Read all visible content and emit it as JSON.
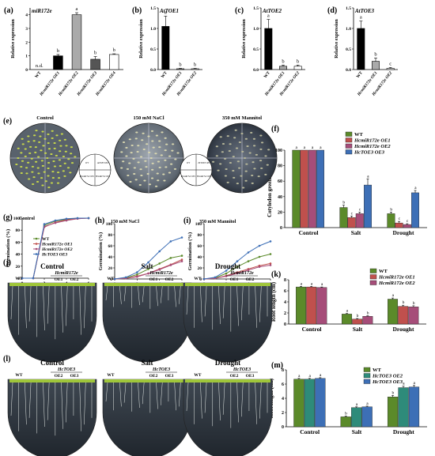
{
  "panels": {
    "a": {
      "label": "(a)",
      "gene": "miR172e",
      "ylabel": "Relative expression",
      "categories": [
        "WT",
        "HcmiR172e OE1",
        "HcmiR172e OE2",
        "HcmiR172e OE3",
        "HcmiR172e OE4"
      ],
      "values": [
        0,
        1.0,
        4.0,
        0.75,
        1.1
      ],
      "errors": [
        0,
        0.1,
        0.15,
        0.2,
        0.05
      ],
      "letters": [
        "n.d.",
        "b",
        "a",
        "b",
        "b"
      ],
      "fill": [
        "#000000",
        "#000000",
        "#aaaaaa",
        "#555555",
        "#ffffff"
      ],
      "ylim": [
        0,
        4.5
      ],
      "yticks": [
        0,
        1,
        2,
        3,
        4
      ]
    },
    "b": {
      "label": "(b)",
      "gene": "AtTOE1",
      "ylabel": "Relative expression",
      "categories": [
        "WT",
        "HcmiR172e OE1",
        "HcmiR172e OE2"
      ],
      "values": [
        1.05,
        0.02,
        0.02
      ],
      "errors": [
        0.25,
        0.01,
        0.01
      ],
      "letters": [
        "a",
        "b",
        "b"
      ],
      "fill": [
        "#000000",
        "#aaaaaa",
        "#ffffff"
      ],
      "ylim": [
        0,
        1.5
      ],
      "yticks": [
        0.0,
        0.5,
        1.0,
        1.5
      ]
    },
    "c": {
      "label": "(c)",
      "gene": "AtTOE2",
      "ylabel": "Relative expression",
      "categories": [
        "WT",
        "HcmiR172e OE1",
        "HcmiR172e OE2"
      ],
      "values": [
        1.0,
        0.08,
        0.08
      ],
      "errors": [
        0.22,
        0.03,
        0.03
      ],
      "letters": [
        "a",
        "b",
        "b"
      ],
      "fill": [
        "#000000",
        "#aaaaaa",
        "#ffffff"
      ],
      "ylim": [
        0,
        1.5
      ],
      "yticks": [
        0.0,
        0.5,
        1.0,
        1.5
      ]
    },
    "d": {
      "label": "(d)",
      "gene": "AtTOE3",
      "ylabel": "Relative expression",
      "categories": [
        "WT",
        "HcmiR172e OE1",
        "HcmiR172e OE2"
      ],
      "values": [
        1.0,
        0.2,
        0.03
      ],
      "errors": [
        0.18,
        0.08,
        0.02
      ],
      "letters": [
        "a",
        "b",
        "c"
      ],
      "fill": [
        "#000000",
        "#aaaaaa",
        "#ffffff"
      ],
      "ylim": [
        0,
        1.5
      ],
      "yticks": [
        0.0,
        0.5,
        1.0,
        1.5
      ]
    }
  },
  "plates_e": {
    "label": "(e)",
    "titles": [
      "Control",
      "150 mM NaCl",
      "350 mM Mannitol"
    ],
    "keys": [
      [
        "WT",
        "AtTOE3 OE2",
        "HcmiR172e OE1",
        "HcmiR172e OE2"
      ],
      [
        "WT",
        "HcTOE3 OE2",
        "HcmiR172e OE1",
        "HcmiR172e OE3"
      ]
    ]
  },
  "chart_data": [
    {
      "id": "f",
      "label": "(f)",
      "type": "bar",
      "ylabel": "Cotyledon greening (%)",
      "categories": [
        "Control",
        "Salt",
        "Drought"
      ],
      "series": [
        {
          "name": "WT",
          "color": "#5b8a2a",
          "values": [
            100,
            26,
            18
          ],
          "errors": [
            0,
            3,
            2
          ],
          "letters": [
            "a",
            "b",
            "b"
          ]
        },
        {
          "name": "HcmiR172e OE1",
          "color": "#c0504d",
          "values": [
            100,
            13,
            6
          ],
          "errors": [
            0,
            2,
            2
          ],
          "letters": [
            "a",
            "c",
            "c"
          ]
        },
        {
          "name": "HcmiR172e OE2",
          "color": "#a64d79",
          "values": [
            100,
            18,
            4
          ],
          "errors": [
            0,
            2,
            1
          ],
          "letters": [
            "a",
            "c",
            "c"
          ]
        },
        {
          "name": "HcTOE3 OE3",
          "color": "#3d6fb6",
          "values": [
            100,
            55,
            45
          ],
          "errors": [
            0,
            8,
            3
          ],
          "letters": [
            "a",
            "a",
            "a"
          ]
        }
      ],
      "ylim": [
        0,
        100
      ],
      "yticks": [
        0,
        20,
        40,
        60,
        80,
        100
      ],
      "legend": "top-right"
    },
    {
      "id": "g",
      "label": "(g)",
      "type": "line",
      "title": "Control",
      "ylabel": "Germination (%)",
      "xlabel": "Time (days)",
      "x": [
        0,
        1,
        2,
        3,
        4,
        5,
        6
      ],
      "series": [
        {
          "name": "WT",
          "color": "#5b8a2a",
          "values": [
            0,
            0,
            88,
            95,
            98,
            100,
            100
          ]
        },
        {
          "name": "HcmiR172e OE1",
          "color": "#c0504d",
          "values": [
            0,
            0,
            85,
            93,
            97,
            99,
            100
          ]
        },
        {
          "name": "HcmiR172e OE2",
          "color": "#a64d79",
          "values": [
            0,
            0,
            86,
            92,
            96,
            99,
            100
          ]
        },
        {
          "name": "HcTOE3 OE3",
          "color": "#3d6fb6",
          "values": [
            0,
            0,
            90,
            96,
            99,
            100,
            100
          ]
        }
      ],
      "ylim": [
        0,
        100
      ],
      "yticks": [
        0,
        20,
        40,
        60,
        80,
        100
      ],
      "xticks": [
        0,
        2,
        4,
        6
      ]
    },
    {
      "id": "h",
      "label": "(h)",
      "type": "line",
      "title": "150 mM NaCl",
      "ylabel": "Germination (%)",
      "xlabel": "Time (days)",
      "x": [
        0,
        1,
        2,
        3,
        4,
        5,
        6
      ],
      "series": [
        {
          "name": "WT",
          "color": "#5b8a2a",
          "values": [
            0,
            2,
            8,
            18,
            28,
            38,
            42
          ]
        },
        {
          "name": "HcmiR172e OE1",
          "color": "#c0504d",
          "values": [
            0,
            1,
            5,
            10,
            18,
            26,
            35
          ]
        },
        {
          "name": "HcmiR172e OE2",
          "color": "#a64d79",
          "values": [
            0,
            1,
            4,
            10,
            17,
            25,
            32
          ]
        },
        {
          "name": "HcTOE3 OE3",
          "color": "#3d6fb6",
          "values": [
            0,
            3,
            12,
            30,
            50,
            68,
            75
          ]
        }
      ],
      "ylim": [
        0,
        100
      ],
      "yticks": [
        0,
        20,
        40,
        60,
        80,
        100
      ],
      "xticks": [
        0,
        2,
        4,
        6
      ]
    },
    {
      "id": "i",
      "label": "(i)",
      "type": "line",
      "title": "350 mM Mannitol",
      "ylabel": "Germination (%)",
      "xlabel": "Time (days)",
      "x": [
        0,
        1,
        2,
        3,
        4,
        5,
        6
      ],
      "series": [
        {
          "name": "WT",
          "color": "#5b8a2a",
          "values": [
            0,
            2,
            10,
            22,
            32,
            40,
            45
          ]
        },
        {
          "name": "HcmiR172e OE1",
          "color": "#c0504d",
          "values": [
            0,
            1,
            6,
            12,
            18,
            24,
            28
          ]
        },
        {
          "name": "HcmiR172e OE2",
          "color": "#a64d79",
          "values": [
            0,
            1,
            5,
            10,
            16,
            22,
            25
          ]
        },
        {
          "name": "HcTOE3 OE3",
          "color": "#3d6fb6",
          "values": [
            0,
            3,
            15,
            32,
            48,
            60,
            68
          ]
        }
      ],
      "ylim": [
        0,
        100
      ],
      "yticks": [
        0,
        20,
        40,
        60,
        80,
        100
      ],
      "xticks": [
        0,
        2,
        4,
        6
      ]
    },
    {
      "id": "k",
      "label": "(k)",
      "type": "bar",
      "ylabel": "Root length (cm)",
      "categories": [
        "Control",
        "Salt",
        "Drought"
      ],
      "series": [
        {
          "name": "WT",
          "color": "#5b8a2a",
          "values": [
            6.7,
            1.8,
            4.5
          ],
          "errors": [
            0.1,
            0.1,
            0.2
          ],
          "letters": [
            "a",
            "a",
            "a"
          ]
        },
        {
          "name": "HcmiR172e OE1",
          "color": "#c0504d",
          "values": [
            6.7,
            0.9,
            3.2
          ],
          "errors": [
            0.1,
            0.1,
            0.2
          ],
          "letters": [
            "a",
            "b",
            "b"
          ]
        },
        {
          "name": "HcmiR172e OE2",
          "color": "#a64d79",
          "values": [
            6.6,
            1.4,
            3.1
          ],
          "errors": [
            0.1,
            0.1,
            0.2
          ],
          "letters": [
            "a",
            "b",
            "b"
          ]
        }
      ],
      "ylim": [
        0,
        8
      ],
      "yticks": [
        0,
        2,
        4,
        6,
        8
      ],
      "legend": "top-right"
    },
    {
      "id": "m",
      "label": "(m)",
      "type": "bar",
      "ylabel": "Root length (cm)",
      "categories": [
        "Control",
        "Salt",
        "Drought"
      ],
      "series": [
        {
          "name": "WT",
          "color": "#5b8a2a",
          "values": [
            6.7,
            1.4,
            4.2
          ],
          "errors": [
            0.1,
            0.1,
            0.2
          ],
          "letters": [
            "a",
            "b",
            "b"
          ]
        },
        {
          "name": "HcTOE3 OE2",
          "color": "#2e8b7a",
          "values": [
            6.7,
            2.7,
            5.5
          ],
          "errors": [
            0.1,
            0.1,
            0.2
          ],
          "letters": [
            "a",
            "a",
            "a"
          ]
        },
        {
          "name": "HcTOE3 OE3",
          "color": "#3d6fb6",
          "values": [
            6.8,
            2.8,
            5.6
          ],
          "errors": [
            0.1,
            0.1,
            0.2
          ],
          "letters": [
            "a",
            "a",
            "a"
          ]
        }
      ],
      "ylim": [
        0,
        8
      ],
      "yticks": [
        0,
        2,
        4,
        6,
        8
      ],
      "legend": "top-right"
    }
  ],
  "plates_j": {
    "label": "(j)",
    "titles": [
      "Control",
      "Salt",
      "Drought"
    ],
    "genotype": "HcmiR172e",
    "wt": "WT",
    "lines": [
      "OE1",
      "OE2"
    ]
  },
  "plates_l": {
    "label": "(l)",
    "titles": [
      "Control",
      "Salt",
      "Drought"
    ],
    "genotype": "HcTOE3",
    "wt": "WT",
    "lines": [
      "OE2",
      "OE3"
    ]
  }
}
